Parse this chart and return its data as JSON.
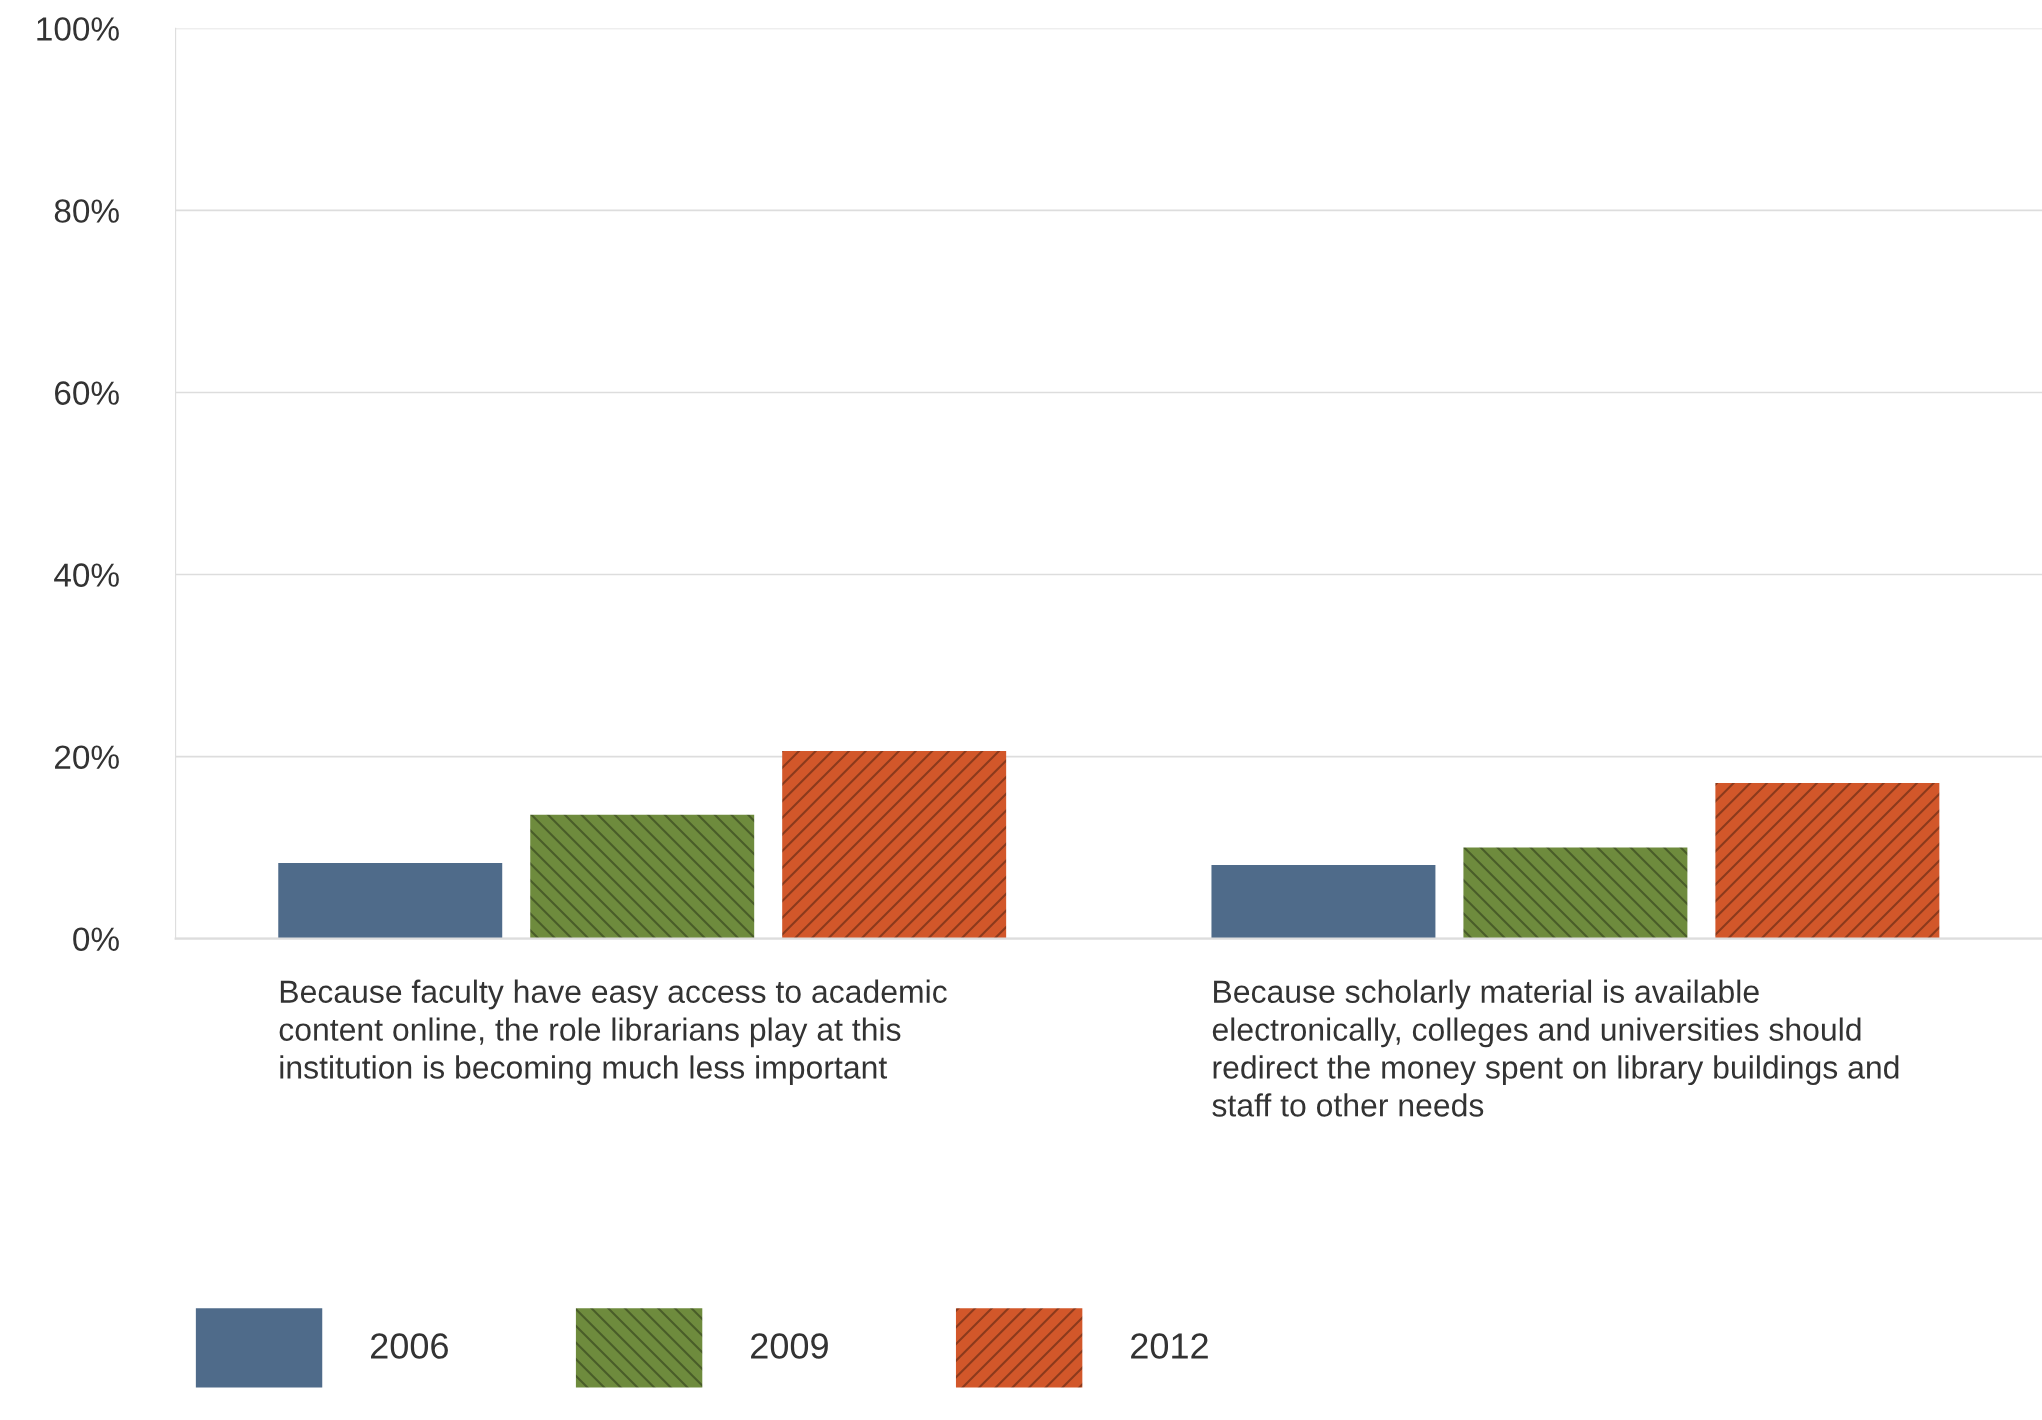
{
  "chart_data": {
    "type": "bar",
    "categories": [
      "Because faculty have easy access to academic content online, the role librarians play at this institution is becoming much less important",
      "Because scholarly material is available electronically, colleges and universities should redirect the money spent on library buildings and staff to other needs"
    ],
    "series": [
      {
        "name": "2006",
        "color": "#4f6b8a",
        "values": [
          8.3,
          8.1
        ]
      },
      {
        "name": "2009",
        "color": "#6e8b3d",
        "values": [
          13.6,
          10
        ]
      },
      {
        "name": "2012",
        "color": "#d2572a",
        "values": [
          20.6,
          17.1
        ]
      }
    ],
    "ylim": [
      0,
      100
    ],
    "yticks": [
      {
        "value": 0,
        "label": "0%"
      },
      {
        "value": 20,
        "label": "20%"
      },
      {
        "value": 40,
        "label": "40%"
      },
      {
        "value": 60,
        "label": "60%"
      },
      {
        "value": 80,
        "label": "80%"
      },
      {
        "value": 100,
        "label": "100%"
      }
    ],
    "grid": "y",
    "legend": "bottom"
  }
}
